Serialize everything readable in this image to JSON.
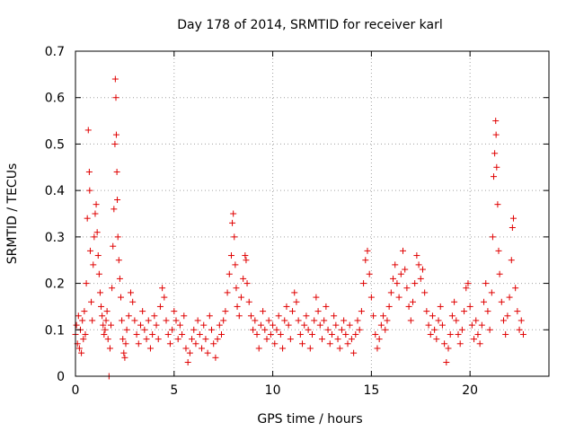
{
  "chart_data": {
    "type": "scatter",
    "title": "Day 178 of 2014, SRMTID for receiver karl",
    "xlabel": "GPS time / hours",
    "ylabel": "SRMTID / TECUs",
    "xlim": [
      0,
      24
    ],
    "ylim": [
      0,
      0.7
    ],
    "xticks": [
      0,
      5,
      10,
      15,
      20
    ],
    "xtick_labels": [
      "0",
      "5",
      "10",
      "15",
      "20"
    ],
    "yticks": [
      0,
      0.1,
      0.2,
      0.3,
      0.4,
      0.5,
      0.6,
      0.7
    ],
    "ytick_labels": [
      "0",
      "0.1",
      "0.2",
      "0.3",
      "0.4",
      "0.5",
      "0.6",
      "0.7"
    ],
    "grid": true,
    "marker": "+",
    "color": "#e00000",
    "series": [
      {
        "name": "SRMTID",
        "points": [
          [
            0.0,
            0.09
          ],
          [
            0.05,
            0.11
          ],
          [
            0.1,
            0.07
          ],
          [
            0.15,
            0.13
          ],
          [
            0.2,
            0.06
          ],
          [
            0.25,
            0.1
          ],
          [
            0.3,
            0.05
          ],
          [
            0.35,
            0.12
          ],
          [
            0.4,
            0.08
          ],
          [
            0.45,
            0.14
          ],
          [
            0.5,
            0.09
          ],
          [
            0.55,
            0.2
          ],
          [
            0.6,
            0.34
          ],
          [
            0.65,
            0.53
          ],
          [
            0.7,
            0.44
          ],
          [
            0.72,
            0.4
          ],
          [
            0.75,
            0.27
          ],
          [
            0.8,
            0.16
          ],
          [
            0.85,
            0.12
          ],
          [
            0.9,
            0.24
          ],
          [
            0.95,
            0.3
          ],
          [
            1.0,
            0.35
          ],
          [
            1.05,
            0.37
          ],
          [
            1.1,
            0.31
          ],
          [
            1.15,
            0.26
          ],
          [
            1.2,
            0.22
          ],
          [
            1.25,
            0.18
          ],
          [
            1.3,
            0.15
          ],
          [
            1.35,
            0.13
          ],
          [
            1.4,
            0.11
          ],
          [
            1.45,
            0.09
          ],
          [
            1.5,
            0.1
          ],
          [
            1.55,
            0.12
          ],
          [
            1.6,
            0.14
          ],
          [
            1.65,
            0.08
          ],
          [
            1.7,
            0.0
          ],
          [
            1.75,
            0.06
          ],
          [
            1.8,
            0.11
          ],
          [
            1.85,
            0.19
          ],
          [
            1.9,
            0.28
          ],
          [
            1.95,
            0.36
          ],
          [
            2.0,
            0.5
          ],
          [
            2.02,
            0.64
          ],
          [
            2.05,
            0.6
          ],
          [
            2.07,
            0.52
          ],
          [
            2.1,
            0.44
          ],
          [
            2.12,
            0.38
          ],
          [
            2.15,
            0.3
          ],
          [
            2.2,
            0.25
          ],
          [
            2.25,
            0.21
          ],
          [
            2.3,
            0.17
          ],
          [
            2.35,
            0.12
          ],
          [
            2.4,
            0.08
          ],
          [
            2.45,
            0.05
          ],
          [
            2.5,
            0.04
          ],
          [
            2.55,
            0.07
          ],
          [
            2.6,
            0.1
          ],
          [
            2.7,
            0.13
          ],
          [
            2.8,
            0.18
          ],
          [
            2.9,
            0.16
          ],
          [
            3.0,
            0.12
          ],
          [
            3.1,
            0.09
          ],
          [
            3.2,
            0.07
          ],
          [
            3.3,
            0.11
          ],
          [
            3.4,
            0.14
          ],
          [
            3.5,
            0.1
          ],
          [
            3.6,
            0.08
          ],
          [
            3.7,
            0.12
          ],
          [
            3.8,
            0.06
          ],
          [
            3.9,
            0.09
          ],
          [
            4.0,
            0.13
          ],
          [
            4.1,
            0.11
          ],
          [
            4.2,
            0.08
          ],
          [
            4.3,
            0.15
          ],
          [
            4.4,
            0.19
          ],
          [
            4.5,
            0.17
          ],
          [
            4.6,
            0.12
          ],
          [
            4.7,
            0.09
          ],
          [
            4.8,
            0.07
          ],
          [
            4.9,
            0.1
          ],
          [
            5.0,
            0.14
          ],
          [
            5.1,
            0.12
          ],
          [
            5.2,
            0.08
          ],
          [
            5.3,
            0.11
          ],
          [
            5.4,
            0.09
          ],
          [
            5.5,
            0.13
          ],
          [
            5.6,
            0.06
          ],
          [
            5.7,
            0.03
          ],
          [
            5.8,
            0.05
          ],
          [
            5.9,
            0.08
          ],
          [
            6.0,
            0.1
          ],
          [
            6.1,
            0.07
          ],
          [
            6.2,
            0.12
          ],
          [
            6.3,
            0.09
          ],
          [
            6.4,
            0.06
          ],
          [
            6.5,
            0.11
          ],
          [
            6.6,
            0.08
          ],
          [
            6.7,
            0.05
          ],
          [
            6.8,
            0.13
          ],
          [
            6.9,
            0.1
          ],
          [
            7.0,
            0.07
          ],
          [
            7.1,
            0.04
          ],
          [
            7.2,
            0.08
          ],
          [
            7.3,
            0.11
          ],
          [
            7.4,
            0.09
          ],
          [
            7.5,
            0.12
          ],
          [
            7.6,
            0.14
          ],
          [
            7.7,
            0.18
          ],
          [
            7.8,
            0.22
          ],
          [
            7.9,
            0.26
          ],
          [
            7.95,
            0.33
          ],
          [
            8.0,
            0.35
          ],
          [
            8.05,
            0.3
          ],
          [
            8.1,
            0.24
          ],
          [
            8.15,
            0.19
          ],
          [
            8.2,
            0.15
          ],
          [
            8.3,
            0.13
          ],
          [
            8.4,
            0.17
          ],
          [
            8.5,
            0.21
          ],
          [
            8.6,
            0.26
          ],
          [
            8.65,
            0.25
          ],
          [
            8.7,
            0.2
          ],
          [
            8.8,
            0.16
          ],
          [
            8.9,
            0.13
          ],
          [
            9.0,
            0.1
          ],
          [
            9.1,
            0.12
          ],
          [
            9.2,
            0.09
          ],
          [
            9.3,
            0.06
          ],
          [
            9.4,
            0.11
          ],
          [
            9.5,
            0.14
          ],
          [
            9.6,
            0.1
          ],
          [
            9.7,
            0.08
          ],
          [
            9.8,
            0.12
          ],
          [
            9.9,
            0.09
          ],
          [
            10.0,
            0.11
          ],
          [
            10.1,
            0.07
          ],
          [
            10.2,
            0.1
          ],
          [
            10.3,
            0.13
          ],
          [
            10.4,
            0.09
          ],
          [
            10.5,
            0.06
          ],
          [
            10.6,
            0.12
          ],
          [
            10.7,
            0.15
          ],
          [
            10.8,
            0.11
          ],
          [
            10.9,
            0.08
          ],
          [
            11.0,
            0.14
          ],
          [
            11.1,
            0.18
          ],
          [
            11.2,
            0.16
          ],
          [
            11.3,
            0.12
          ],
          [
            11.4,
            0.09
          ],
          [
            11.5,
            0.07
          ],
          [
            11.6,
            0.11
          ],
          [
            11.7,
            0.13
          ],
          [
            11.8,
            0.1
          ],
          [
            11.9,
            0.06
          ],
          [
            12.0,
            0.09
          ],
          [
            12.1,
            0.12
          ],
          [
            12.2,
            0.17
          ],
          [
            12.3,
            0.14
          ],
          [
            12.4,
            0.11
          ],
          [
            12.5,
            0.08
          ],
          [
            12.6,
            0.12
          ],
          [
            12.7,
            0.15
          ],
          [
            12.8,
            0.1
          ],
          [
            12.9,
            0.07
          ],
          [
            13.0,
            0.09
          ],
          [
            13.1,
            0.13
          ],
          [
            13.2,
            0.11
          ],
          [
            13.3,
            0.08
          ],
          [
            13.4,
            0.06
          ],
          [
            13.5,
            0.1
          ],
          [
            13.6,
            0.12
          ],
          [
            13.7,
            0.09
          ],
          [
            13.8,
            0.07
          ],
          [
            13.9,
            0.11
          ],
          [
            14.0,
            0.08
          ],
          [
            14.1,
            0.05
          ],
          [
            14.2,
            0.09
          ],
          [
            14.3,
            0.12
          ],
          [
            14.4,
            0.1
          ],
          [
            14.5,
            0.14
          ],
          [
            14.6,
            0.2
          ],
          [
            14.7,
            0.25
          ],
          [
            14.8,
            0.27
          ],
          [
            14.9,
            0.22
          ],
          [
            15.0,
            0.17
          ],
          [
            15.1,
            0.13
          ],
          [
            15.2,
            0.09
          ],
          [
            15.3,
            0.06
          ],
          [
            15.4,
            0.08
          ],
          [
            15.5,
            0.11
          ],
          [
            15.6,
            0.13
          ],
          [
            15.7,
            0.1
          ],
          [
            15.8,
            0.12
          ],
          [
            15.9,
            0.15
          ],
          [
            16.0,
            0.18
          ],
          [
            16.1,
            0.21
          ],
          [
            16.2,
            0.24
          ],
          [
            16.3,
            0.2
          ],
          [
            16.4,
            0.17
          ],
          [
            16.5,
            0.22
          ],
          [
            16.6,
            0.27
          ],
          [
            16.7,
            0.23
          ],
          [
            16.8,
            0.19
          ],
          [
            16.9,
            0.15
          ],
          [
            17.0,
            0.12
          ],
          [
            17.1,
            0.16
          ],
          [
            17.2,
            0.2
          ],
          [
            17.3,
            0.26
          ],
          [
            17.4,
            0.24
          ],
          [
            17.5,
            0.21
          ],
          [
            17.6,
            0.23
          ],
          [
            17.7,
            0.18
          ],
          [
            17.8,
            0.14
          ],
          [
            17.9,
            0.11
          ],
          [
            18.0,
            0.09
          ],
          [
            18.1,
            0.13
          ],
          [
            18.2,
            0.1
          ],
          [
            18.3,
            0.08
          ],
          [
            18.4,
            0.12
          ],
          [
            18.5,
            0.15
          ],
          [
            18.6,
            0.11
          ],
          [
            18.7,
            0.07
          ],
          [
            18.8,
            0.03
          ],
          [
            18.9,
            0.06
          ],
          [
            19.0,
            0.09
          ],
          [
            19.1,
            0.13
          ],
          [
            19.2,
            0.16
          ],
          [
            19.3,
            0.12
          ],
          [
            19.4,
            0.09
          ],
          [
            19.5,
            0.07
          ],
          [
            19.6,
            0.1
          ],
          [
            19.7,
            0.14
          ],
          [
            19.8,
            0.19
          ],
          [
            19.9,
            0.2
          ],
          [
            20.0,
            0.15
          ],
          [
            20.1,
            0.11
          ],
          [
            20.2,
            0.08
          ],
          [
            20.3,
            0.12
          ],
          [
            20.4,
            0.09
          ],
          [
            20.5,
            0.07
          ],
          [
            20.6,
            0.11
          ],
          [
            20.7,
            0.16
          ],
          [
            20.8,
            0.2
          ],
          [
            20.9,
            0.14
          ],
          [
            21.0,
            0.1
          ],
          [
            21.1,
            0.18
          ],
          [
            21.15,
            0.3
          ],
          [
            21.2,
            0.43
          ],
          [
            21.25,
            0.48
          ],
          [
            21.3,
            0.55
          ],
          [
            21.32,
            0.52
          ],
          [
            21.35,
            0.45
          ],
          [
            21.4,
            0.37
          ],
          [
            21.45,
            0.27
          ],
          [
            21.5,
            0.22
          ],
          [
            21.6,
            0.16
          ],
          [
            21.7,
            0.12
          ],
          [
            21.8,
            0.09
          ],
          [
            21.9,
            0.13
          ],
          [
            22.0,
            0.17
          ],
          [
            22.1,
            0.25
          ],
          [
            22.15,
            0.32
          ],
          [
            22.2,
            0.34
          ],
          [
            22.3,
            0.19
          ],
          [
            22.4,
            0.14
          ],
          [
            22.5,
            0.1
          ],
          [
            22.6,
            0.12
          ],
          [
            22.7,
            0.09
          ]
        ]
      }
    ]
  }
}
